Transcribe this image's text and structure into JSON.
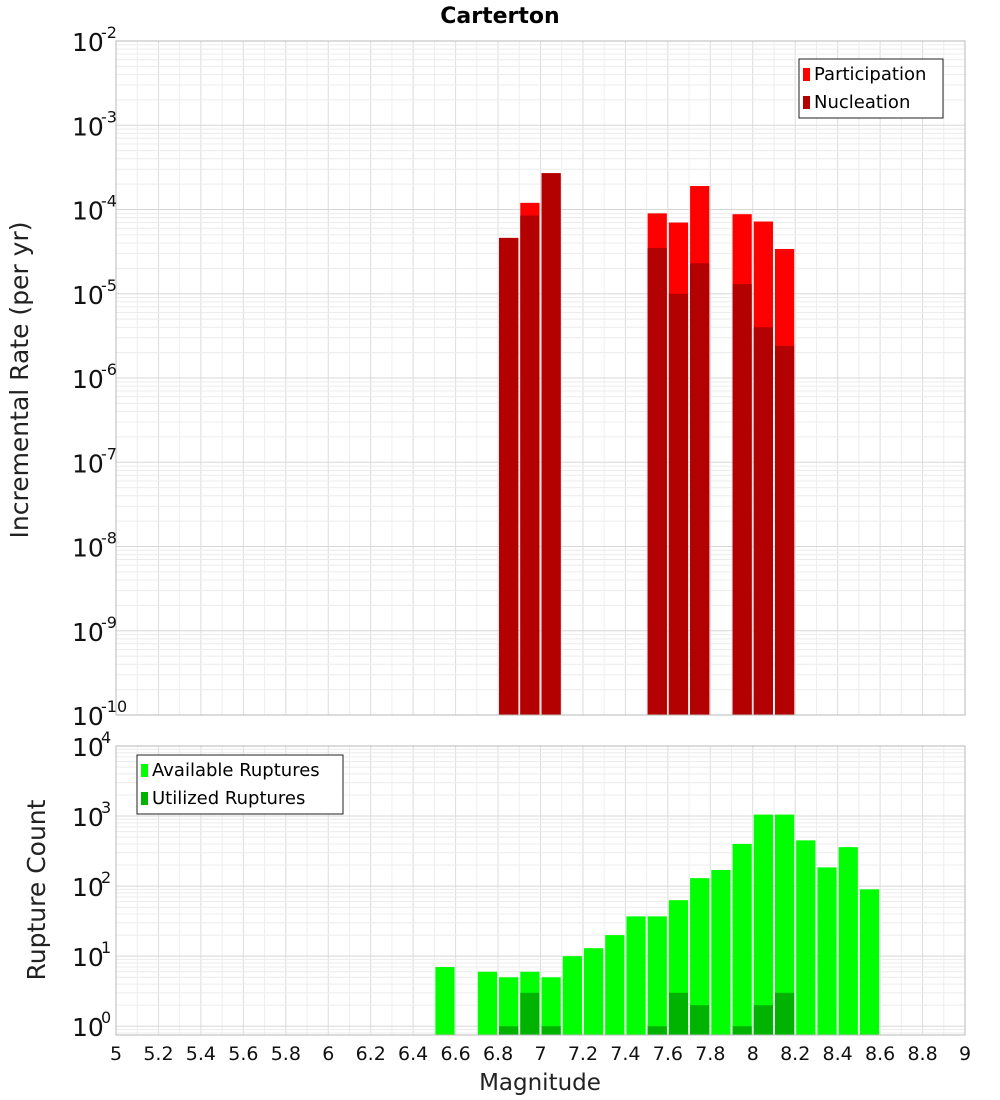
{
  "chart_data": [
    {
      "type": "bar",
      "title": "Carterton",
      "ylabel": "Incremental Rate (per yr)",
      "xlabel": "",
      "xlim": [
        5,
        9
      ],
      "ylim": [
        1e-10,
        0.01
      ],
      "yscale": "log",
      "bin_width": 0.1,
      "grid": true,
      "legend_position": "top-right",
      "x": [
        6.85,
        6.95,
        7.05,
        7.55,
        7.65,
        7.75,
        7.95,
        8.05,
        8.15
      ],
      "series": [
        {
          "name": "Participation",
          "color": "#ff0000",
          "values": [
            4.6e-05,
            0.00012,
            0.00027,
            9e-05,
            7e-05,
            0.00019,
            8.8e-05,
            7.2e-05,
            3.4e-05
          ]
        },
        {
          "name": "Nucleation",
          "color": "#b30000",
          "values": [
            4.6e-05,
            8.5e-05,
            0.00027,
            3.5e-05,
            1e-05,
            2.3e-05,
            1.3e-05,
            4e-06,
            2.4e-06
          ]
        }
      ],
      "yticks": [
        {
          "base": "10",
          "exp": "-2"
        },
        {
          "base": "10",
          "exp": "-3"
        },
        {
          "base": "10",
          "exp": "-4"
        },
        {
          "base": "10",
          "exp": "-5"
        },
        {
          "base": "10",
          "exp": "-6"
        },
        {
          "base": "10",
          "exp": "-7"
        },
        {
          "base": "10",
          "exp": "-8"
        },
        {
          "base": "10",
          "exp": "-9"
        },
        {
          "base": "10",
          "exp": "-10"
        }
      ]
    },
    {
      "type": "bar",
      "title": "",
      "ylabel": "Rupture Count",
      "xlabel": "Magnitude",
      "xlim": [
        5,
        9
      ],
      "ylim": [
        0.75,
        10000
      ],
      "yscale": "log",
      "bin_width": 0.1,
      "grid": true,
      "legend_position": "top-left",
      "series": [
        {
          "name": "Available Ruptures",
          "color": "#00ff00",
          "x": [
            6.55,
            6.75,
            6.85,
            6.95,
            7.05,
            7.15,
            7.25,
            7.35,
            7.45,
            7.55,
            7.65,
            7.75,
            7.85,
            7.95,
            8.05,
            8.15,
            8.25,
            8.35,
            8.45,
            8.55
          ],
          "values": [
            7,
            6,
            5,
            6,
            5,
            10,
            13,
            20,
            37,
            37,
            63,
            130,
            170,
            400,
            1050,
            1050,
            450,
            185,
            360,
            90
          ]
        },
        {
          "name": "Utilized Ruptures",
          "color": "#00b300",
          "x": [
            6.85,
            6.95,
            7.05,
            7.55,
            7.65,
            7.75,
            7.95,
            8.05,
            8.15
          ],
          "values": [
            1,
            3,
            1,
            1,
            3,
            2,
            1,
            2,
            3
          ]
        }
      ],
      "yticks": [
        {
          "base": "10",
          "exp": "4"
        },
        {
          "base": "10",
          "exp": "3"
        },
        {
          "base": "10",
          "exp": "2"
        },
        {
          "base": "10",
          "exp": "1"
        },
        {
          "base": "10",
          "exp": "0"
        }
      ],
      "xticks": [
        "5",
        "5.2",
        "5.4",
        "5.6",
        "5.8",
        "6",
        "6.2",
        "6.4",
        "6.6",
        "6.8",
        "7",
        "7.2",
        "7.4",
        "7.6",
        "7.8",
        "8",
        "8.2",
        "8.4",
        "8.6",
        "8.8",
        "9"
      ]
    }
  ]
}
